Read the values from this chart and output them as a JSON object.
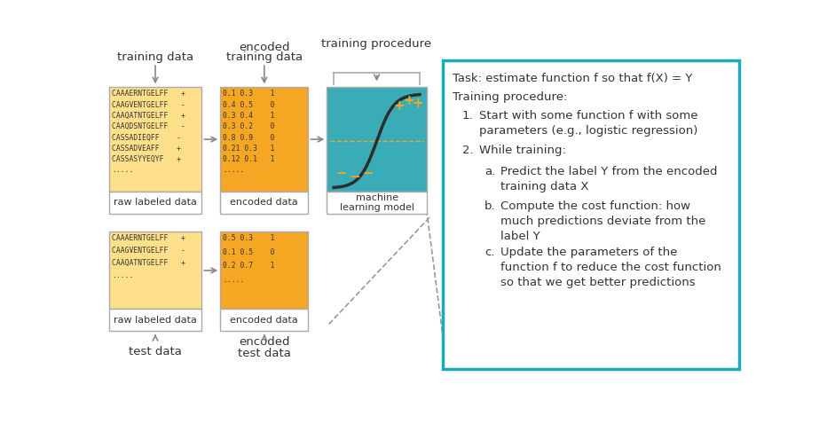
{
  "bg_color": "#ffffff",
  "yellow_light": "#FFE08A",
  "yellow_dark": "#F5A623",
  "teal": "#3AACB8",
  "white": "#ffffff",
  "dark_text": "#333333",
  "arrow_color": "#888888",
  "sigmoid_color": "#2d2d2d",
  "plus_color": "#F5A623",
  "minus_color": "#F5A623",
  "dashed_h_color": "#F5A623",
  "dashed_conn_color": "#999999",
  "text_box_border": "#1AACB8",
  "box_edge": "#aaaaaa",
  "train_raw_rows": [
    "CAAAERNTGELFF   +",
    "CAAGVENTGELFF   -",
    "CAAQATNTGELFF   +",
    "CAAQDSNTGELFF   -",
    "CASSADIEQFF    -",
    "CASSADVEAFF    +",
    "CASSASYYEQYF   +",
    "....."
  ],
  "train_encoded_rows": [
    "0.1 0.3    1",
    "0.4 0.5    0",
    "0.3 0.4    1",
    "0.3 0.2    0",
    "0.8 0.9    0",
    "0.21 0.3   1",
    "0.12 0.1   1",
    "....."
  ],
  "test_raw_rows": [
    "CAAAERNTGELFF   +",
    "CAAGVENTGELFF   -",
    "CAAQATNTGELFF   +",
    "....."
  ],
  "test_encoded_rows": [
    "0.5 0.3    1",
    "0.1 0.5    0",
    "0.2 0.7    1",
    "....."
  ]
}
